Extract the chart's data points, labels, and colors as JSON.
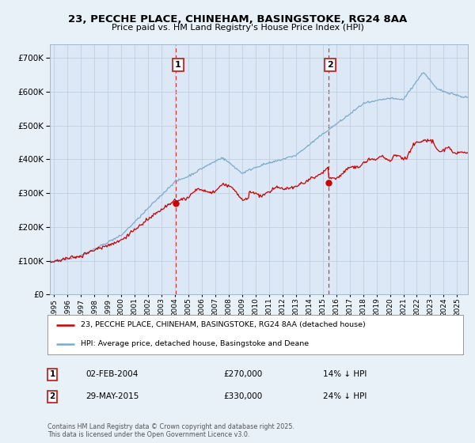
{
  "title": "23, PECCHE PLACE, CHINEHAM, BASINGSTOKE, RG24 8AA",
  "subtitle": "Price paid vs. HM Land Registry's House Price Index (HPI)",
  "bg_color": "#e8f0f8",
  "plot_bg_color": "#dce8f5",
  "ytick_values": [
    0,
    100000,
    200000,
    300000,
    400000,
    500000,
    600000,
    700000
  ],
  "ylim": [
    0,
    740000
  ],
  "xlim_start": 1994.7,
  "xlim_end": 2025.8,
  "sale1_date": 2004.085,
  "sale1_price": 270000,
  "sale1_label": "1",
  "sale2_date": 2015.41,
  "sale2_price": 330000,
  "sale2_label": "2",
  "line_red_color": "#cc0000",
  "line_blue_color": "#7aabcf",
  "vline_color": "#dd3333",
  "grid_color": "#c0cfe0",
  "legend_line1": "23, PECCHE PLACE, CHINEHAM, BASINGSTOKE, RG24 8AA (detached house)",
  "legend_line2": "HPI: Average price, detached house, Basingstoke and Deane",
  "annotation1_date": "02-FEB-2004",
  "annotation1_price": "£270,000",
  "annotation1_hpi": "14% ↓ HPI",
  "annotation2_date": "29-MAY-2015",
  "annotation2_price": "£330,000",
  "annotation2_hpi": "24% ↓ HPI",
  "footer": "Contains HM Land Registry data © Crown copyright and database right 2025.\nThis data is licensed under the Open Government Licence v3.0.",
  "xtick_years": [
    1995,
    1996,
    1997,
    1998,
    1999,
    2000,
    2001,
    2002,
    2003,
    2004,
    2005,
    2006,
    2007,
    2008,
    2009,
    2010,
    2011,
    2012,
    2013,
    2014,
    2015,
    2016,
    2017,
    2018,
    2019,
    2020,
    2021,
    2022,
    2023,
    2024,
    2025
  ]
}
